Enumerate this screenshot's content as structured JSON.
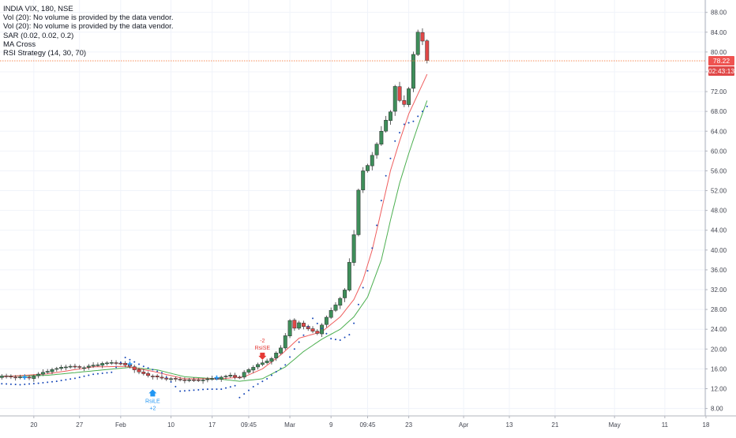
{
  "legend": {
    "symbol": "INDIA VIX, 180, NSE",
    "vol1": "Vol (20): No volume is provided by the data vendor.",
    "vol2": "Vol (20): No volume is provided by the data vendor.",
    "sar": "SAR (0.02, 0.02, 0.2)",
    "ma": "MA Cross",
    "rsi": "RSI Strategy (14, 30, 70)"
  },
  "last_price": {
    "value": "78.22",
    "timer": "02:43:13"
  },
  "signals": [
    {
      "type": "short",
      "top": "-2",
      "bottom": "RsiSE",
      "at_candle": 57,
      "y": 17.2
    },
    {
      "type": "long",
      "top": "RsiLE",
      "bottom": "+2",
      "at_candle": 33,
      "y": 12.5
    }
  ],
  "colors": {
    "up": "#3e8e5a",
    "down": "#e04848",
    "sar": "#1848b8",
    "ma_fast": "#ef5d5d",
    "ma_slow": "#4caf50",
    "price_line": "#f57c42",
    "price_tag": "#ef5350",
    "timer_tag": "#e04848",
    "signal_long": "#2196f3",
    "signal_short": "#e53935"
  },
  "chart_data": {
    "type": "candlestick",
    "y_axis": {
      "ylim": [
        6.5,
        90.5
      ],
      "ticks": [
        "8.00",
        "12.00",
        "16.00",
        "20.00",
        "24.00",
        "28.00",
        "32.00",
        "36.00",
        "40.00",
        "44.00",
        "48.00",
        "52.00",
        "56.00",
        "60.00",
        "64.00",
        "68.00",
        "72.00",
        "76.00",
        "80.00",
        "84.00",
        "88.00"
      ]
    },
    "x_axis": {
      "ticks": [
        {
          "label": "20",
          "at_candle": 7
        },
        {
          "label": "27",
          "at_candle": 17
        },
        {
          "label": "Feb",
          "at_candle": 26
        },
        {
          "label": "10",
          "at_candle": 37
        },
        {
          "label": "17",
          "at_candle": 46
        },
        {
          "label": "09:45",
          "at_candle": 54
        },
        {
          "label": "Mar",
          "at_candle": 63
        },
        {
          "label": "9",
          "at_candle": 72
        },
        {
          "label": "09:45",
          "at_candle": 80
        },
        {
          "label": "23",
          "at_candle": 89
        },
        {
          "label": "Apr",
          "at_candle": 101
        },
        {
          "label": "13",
          "at_candle": 111
        },
        {
          "label": "21",
          "at_candle": 121
        },
        {
          "label": "May",
          "at_candle": 134
        },
        {
          "label": "11",
          "at_candle": 145
        },
        {
          "label": "18",
          "at_candle": 154
        }
      ]
    },
    "close_path": [
      [
        0,
        14.5
      ],
      [
        6,
        14.2
      ],
      [
        10,
        15.6
      ],
      [
        14,
        16.5
      ],
      [
        18,
        16.3
      ],
      [
        22,
        17.1
      ],
      [
        25,
        17.3
      ],
      [
        28,
        16.5
      ],
      [
        30,
        15.3
      ],
      [
        32,
        14.7
      ],
      [
        35,
        14.1
      ],
      [
        38,
        13.9
      ],
      [
        41,
        13.7
      ],
      [
        44,
        13.8
      ],
      [
        47,
        14.1
      ],
      [
        50,
        14.7
      ],
      [
        52,
        14.2
      ],
      [
        53,
        15.3
      ],
      [
        55,
        16.4
      ],
      [
        57,
        17.2
      ],
      [
        59,
        18.1
      ],
      [
        61,
        20.2
      ],
      [
        62,
        22.8
      ],
      [
        63,
        25.7
      ],
      [
        64,
        24.2
      ],
      [
        65,
        25.3
      ],
      [
        67,
        24.0
      ],
      [
        69,
        23.2
      ],
      [
        70,
        24.9
      ],
      [
        72,
        27.8
      ],
      [
        74,
        30.2
      ],
      [
        75,
        31.9
      ],
      [
        76,
        37.5
      ],
      [
        77,
        43.2
      ],
      [
        78,
        52.0
      ],
      [
        79,
        56.0
      ],
      [
        80,
        57.1
      ],
      [
        81,
        59.2
      ],
      [
        82,
        61.3
      ],
      [
        83,
        64.0
      ],
      [
        84,
        66.3
      ],
      [
        85,
        67.9
      ],
      [
        86,
        73.0
      ],
      [
        87,
        70.2
      ],
      [
        88,
        69.5
      ],
      [
        89,
        72.5
      ],
      [
        90,
        79.5
      ],
      [
        91,
        84.0
      ],
      [
        92,
        82.3
      ],
      [
        93,
        78.2
      ]
    ],
    "sar_path": [
      [
        0,
        13.0
      ],
      [
        4,
        12.8
      ],
      [
        8,
        13.1
      ],
      [
        12,
        13.5
      ],
      [
        16,
        14.1
      ],
      [
        20,
        14.9
      ],
      [
        24,
        15.3
      ],
      [
        27,
        18.3
      ],
      [
        31,
        16.5
      ],
      [
        35,
        15.2
      ],
      [
        39,
        11.5
      ],
      [
        45,
        11.9
      ],
      [
        48,
        11.9
      ],
      [
        51,
        12.6
      ],
      [
        52,
        10.2
      ],
      [
        55,
        12.4
      ],
      [
        58,
        14.0
      ],
      [
        62,
        16.8
      ],
      [
        64,
        20.0
      ],
      [
        66,
        22.8
      ],
      [
        68,
        26.2
      ],
      [
        72,
        22.1
      ],
      [
        74,
        21.8
      ],
      [
        76,
        22.9
      ],
      [
        77,
        25.2
      ],
      [
        78,
        29.0
      ],
      [
        80,
        35.8
      ],
      [
        82,
        45.0
      ],
      [
        84,
        55.0
      ],
      [
        86,
        62.0
      ],
      [
        88,
        65.4
      ],
      [
        90,
        66.0
      ],
      [
        93,
        69.0
      ]
    ],
    "ma_fast_path": [
      [
        0,
        14.4
      ],
      [
        10,
        15.0
      ],
      [
        20,
        16.4
      ],
      [
        27,
        16.5
      ],
      [
        33,
        15.5
      ],
      [
        40,
        14.0
      ],
      [
        48,
        14.0
      ],
      [
        53,
        14.4
      ],
      [
        57,
        16.0
      ],
      [
        61,
        18.8
      ],
      [
        65,
        22.2
      ],
      [
        70,
        23.5
      ],
      [
        74,
        26.5
      ],
      [
        77,
        30.0
      ],
      [
        79,
        34.0
      ],
      [
        81,
        40.0
      ],
      [
        83,
        48.0
      ],
      [
        85,
        56.0
      ],
      [
        87,
        62.0
      ],
      [
        89,
        67.5
      ],
      [
        91,
        71.5
      ],
      [
        93,
        75.5
      ]
    ],
    "ma_slow_path": [
      [
        0,
        14.5
      ],
      [
        10,
        14.7
      ],
      [
        20,
        15.6
      ],
      [
        28,
        16.3
      ],
      [
        34,
        15.8
      ],
      [
        40,
        14.4
      ],
      [
        47,
        14.0
      ],
      [
        52,
        13.5
      ],
      [
        57,
        14.0
      ],
      [
        62,
        16.4
      ],
      [
        66,
        19.5
      ],
      [
        70,
        22.0
      ],
      [
        74,
        24.0
      ],
      [
        77,
        26.5
      ],
      [
        80,
        30.5
      ],
      [
        83,
        38.0
      ],
      [
        85,
        46.0
      ],
      [
        87,
        53.5
      ],
      [
        89,
        59.5
      ],
      [
        91,
        65.0
      ],
      [
        93,
        70.2
      ]
    ]
  }
}
